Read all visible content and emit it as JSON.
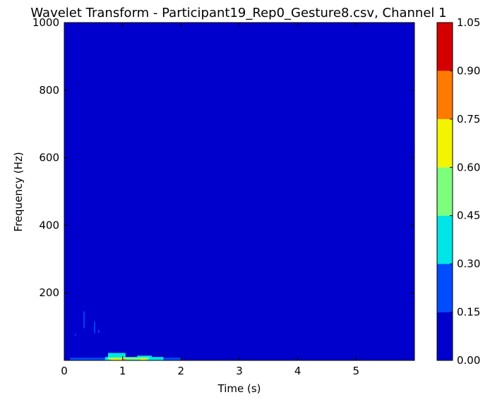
{
  "chart_data": {
    "type": "heatmap",
    "title": "Wavelet Transform - Participant19_Rep0_Gesture8.csv, Channel 1",
    "xlabel": "Time (s)",
    "ylabel": "Frequency (Hz)",
    "xlim": [
      0,
      6
    ],
    "ylim": [
      0,
      1000
    ],
    "xticks": [
      0,
      1,
      2,
      3,
      4,
      5
    ],
    "xtick_labels": [
      "0",
      "1",
      "2",
      "3",
      "4",
      "5"
    ],
    "yticks": [
      200,
      400,
      600,
      800,
      1000
    ],
    "ytick_labels": [
      "200",
      "400",
      "600",
      "800",
      "1000"
    ],
    "colorbar": {
      "levels": [
        0.0,
        0.15,
        0.3,
        0.45,
        0.6,
        0.75,
        0.9,
        1.05
      ],
      "tick_labels": [
        "0.00",
        "0.15",
        "0.30",
        "0.45",
        "0.60",
        "0.75",
        "0.90",
        "1.05"
      ],
      "colors": [
        "#0000cd",
        "#004cff",
        "#00e5e5",
        "#7dff7d",
        "#f3f500",
        "#ff7a00",
        "#d40000"
      ]
    },
    "background_value": 0.05,
    "features": [
      {
        "t_start": 0.33,
        "t_end": 0.35,
        "f_low": 95,
        "f_high": 145,
        "value": 0.2
      },
      {
        "t_start": 0.51,
        "t_end": 0.53,
        "f_low": 80,
        "f_high": 115,
        "value": 0.2
      },
      {
        "t_start": 0.58,
        "t_end": 0.6,
        "f_low": 82,
        "f_high": 90,
        "value": 0.2
      },
      {
        "t_start": 0.18,
        "t_end": 0.2,
        "f_low": 73,
        "f_high": 78,
        "value": 0.2
      },
      {
        "t_start": 0.1,
        "t_end": 2.0,
        "f_low": 0,
        "f_high": 8,
        "value": 0.2
      },
      {
        "t_start": 0.7,
        "t_end": 1.7,
        "f_low": 0,
        "f_high": 10,
        "value": 0.35
      },
      {
        "t_start": 0.75,
        "t_end": 1.05,
        "f_low": 5,
        "f_high": 22,
        "value": 0.35
      },
      {
        "t_start": 1.25,
        "t_end": 1.5,
        "f_low": 3,
        "f_high": 14,
        "value": 0.35
      },
      {
        "t_start": 0.75,
        "t_end": 1.45,
        "f_low": 2,
        "f_high": 9,
        "value": 0.5
      },
      {
        "t_start": 0.8,
        "t_end": 1.0,
        "f_low": 0,
        "f_high": 5,
        "value": 0.65
      },
      {
        "t_start": 1.3,
        "t_end": 1.4,
        "f_low": 0,
        "f_high": 5,
        "value": 0.65
      },
      {
        "t_start": 1.0,
        "t_end": 1.05,
        "f_low": 0,
        "f_high": 4,
        "value": 0.8
      }
    ]
  }
}
